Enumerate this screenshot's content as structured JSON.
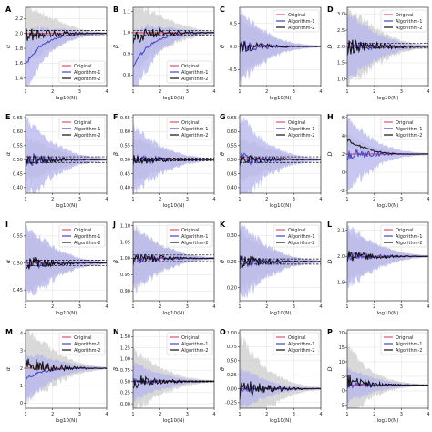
{
  "colors": {
    "original": "#e0506a",
    "algorithm1": "#4444cc",
    "algorithm2": "#111111",
    "band1": "#b4b4ec",
    "band2": "#cccccc",
    "reference": "#000000"
  },
  "legend_entries": [
    "Original",
    "Algorithm-1",
    "Algorithm-2"
  ],
  "xlabel": "log10(N)",
  "chart_data": [
    {
      "type": "line",
      "panel": "A",
      "ylabel": "α",
      "xlim": [
        1,
        4
      ],
      "ylim": [
        1.3,
        2.35
      ],
      "yticks": [
        1.4,
        1.6,
        1.8,
        2.0,
        2.2
      ],
      "ytick_labels": [
        "1.4",
        "1.6",
        "1.8",
        "2.0",
        "2.2"
      ],
      "xticks": [
        1,
        2,
        3,
        4
      ],
      "xtick_labels": [
        "1",
        "2",
        "3",
        "4"
      ],
      "truth": 2.0,
      "ref": [
        2.04,
        1.97
      ],
      "legend": "bottom-right",
      "n1": "1.6,1.82,1.92,1.97,1.99,2.0,2.0",
      "n2": "1.98,1.99,2.0,2.0,2.0,2.0,2.0",
      "w1": "0.4,0.25,0.15,0.08,0.04,0.02,0.01",
      "w2": "0.4,0.3,0.2,0.12,0.06,0.03,0.01",
      "s1": "start",
      "s2": "noisy"
    },
    {
      "type": "line",
      "panel": "B",
      "ylabel": "β",
      "xlim": [
        1,
        4
      ],
      "ylim": [
        0.75,
        1.12
      ],
      "yticks": [
        0.8,
        0.9,
        1.0,
        1.1
      ],
      "ytick_labels": [
        "0.8",
        "0.9",
        "1.0",
        "1.1"
      ],
      "xticks": [
        1,
        2,
        3,
        4
      ],
      "xtick_labels": [
        "1",
        "2",
        "3",
        "4"
      ],
      "truth": 1.0,
      "ref": [
        1.01,
        0.99
      ],
      "legend": "bottom-right",
      "n1": "0.85,0.93,0.97,0.99,1.0,1.0,1.0",
      "n2": "0.98,0.99,1.0,1.0,1.0,1.0,1.0",
      "w1": "0.15,0.1,0.06,0.03,0.015,0.008,0.004",
      "w2": "0.15,0.12,0.08,0.05,0.03,0.015,0.006",
      "s1": "start",
      "s2": "noisy"
    },
    {
      "type": "line",
      "panel": "C",
      "ylabel": "θ",
      "xlim": [
        1,
        4
      ],
      "ylim": [
        -0.85,
        0.85
      ],
      "yticks": [
        -0.5,
        0.0,
        0.5
      ],
      "ytick_labels": [
        "-0.5",
        "0.0",
        "0.5"
      ],
      "xticks": [
        1,
        2,
        3,
        4
      ],
      "xtick_labels": [
        "1",
        "2",
        "3",
        "4"
      ],
      "truth": 0.0,
      "ref": [],
      "legend": "top-right",
      "n1": "0,0,0,0,0,0,0",
      "n2": "0,0,0,0,0,0,0",
      "w1": "0.8,0.5,0.3,0.15,0.08,0.04,0.02",
      "w2": "0.6,0.4,0.25,0.12,0.06,0.03,0.015",
      "s1": "noisy",
      "s2": "noisy"
    },
    {
      "type": "line",
      "panel": "D",
      "ylabel": "D",
      "xlim": [
        1,
        4
      ],
      "ylim": [
        0.8,
        3.2
      ],
      "yticks": [
        1.0,
        1.5,
        2.0,
        2.5,
        3.0
      ],
      "ytick_labels": [
        "1.0",
        "1.5",
        "2.0",
        "2.5",
        "3.0"
      ],
      "xticks": [
        1,
        2,
        3,
        4
      ],
      "xtick_labels": [
        "1",
        "2",
        "3",
        "4"
      ],
      "truth": 2.0,
      "ref": [
        2.1,
        1.95
      ],
      "legend": "top-right",
      "n1": "2,2,2,2,2,2,2",
      "n2": "2,2,2,2,2,2,2",
      "w1": "1.0,0.7,0.45,0.25,0.12,0.06,0.03",
      "w2": "1.2,0.9,0.6,0.35,0.18,0.09,0.04",
      "s1": "noisy",
      "s2": "noisy"
    },
    {
      "type": "line",
      "panel": "E",
      "ylabel": "α",
      "xlim": [
        1,
        4
      ],
      "ylim": [
        0.38,
        0.66
      ],
      "yticks": [
        0.4,
        0.45,
        0.5,
        0.55,
        0.6,
        0.65
      ],
      "ytick_labels": [
        "0.40",
        "0.45",
        "0.50",
        "0.55",
        "0.60",
        "0.65"
      ],
      "xticks": [
        1,
        2,
        3,
        4
      ],
      "xtick_labels": [
        "1",
        "2",
        "3",
        "4"
      ],
      "truth": 0.5,
      "ref": [
        0.51,
        0.49
      ],
      "legend": "top-right",
      "n1": "0.5,0.5,0.5,0.5,0.5,0.5,0.5",
      "n2": "0.5,0.5,0.5,0.5,0.5,0.5,0.5",
      "w1": "0.15,0.1,0.06,0.035,0.018,0.009,0.004",
      "w2": "0.08,0.06,0.04,0.025,0.012,0.006,0.003",
      "s1": "noisy",
      "s2": "noisy"
    },
    {
      "type": "line",
      "panel": "F",
      "ylabel": "β",
      "xlim": [
        1,
        4
      ],
      "ylim": [
        0.38,
        0.66
      ],
      "yticks": [
        0.4,
        0.45,
        0.5,
        0.55,
        0.6,
        0.65
      ],
      "ytick_labels": [
        "0.40",
        "0.45",
        "0.50",
        "0.55",
        "0.60",
        "0.65"
      ],
      "xticks": [
        1,
        2,
        3,
        4
      ],
      "xtick_labels": [
        "1",
        "2",
        "3",
        "4"
      ],
      "truth": 0.5,
      "ref": [
        0.505,
        0.495
      ],
      "legend": "top-right",
      "n1": "0.5,0.5,0.5,0.5,0.5,0.5,0.5",
      "n2": "0.5,0.5,0.5,0.5,0.5,0.5,0.5",
      "w1": "0.12,0.08,0.05,0.03,0.015,0.008,0.004",
      "w2": "0.08,0.06,0.04,0.025,0.012,0.006,0.003",
      "s1": "noisy",
      "s2": "noisy"
    },
    {
      "type": "line",
      "panel": "G",
      "ylabel": "θ",
      "xlim": [
        1,
        4
      ],
      "ylim": [
        0.38,
        0.66
      ],
      "yticks": [
        0.4,
        0.45,
        0.5,
        0.55,
        0.6,
        0.65
      ],
      "ytick_labels": [
        "0.40",
        "0.45",
        "0.50",
        "0.55",
        "0.60",
        "0.65"
      ],
      "xticks": [
        1,
        2,
        3,
        4
      ],
      "xtick_labels": [
        "1",
        "2",
        "3",
        "4"
      ],
      "truth": 0.5,
      "ref": [
        0.51,
        0.49
      ],
      "legend": "top-right",
      "n1": "0.5,0.5,0.5,0.5,0.5,0.5,0.5",
      "n2": "0.5,0.5,0.5,0.5,0.5,0.5,0.5",
      "w1": "0.15,0.1,0.06,0.035,0.018,0.009,0.004",
      "w2": "0.08,0.06,0.04,0.025,0.012,0.006,0.003",
      "s1": "noisy",
      "s2": "noisy"
    },
    {
      "type": "line",
      "panel": "H",
      "ylabel": "D",
      "xlim": [
        1,
        4
      ],
      "ylim": [
        -2.3,
        6.3
      ],
      "yticks": [
        -2,
        0,
        2,
        4,
        6
      ],
      "ytick_labels": [
        "-2",
        "0",
        "2",
        "4",
        "6"
      ],
      "xticks": [
        1,
        2,
        3,
        4
      ],
      "xtick_labels": [
        "1",
        "2",
        "3",
        "4"
      ],
      "truth": 2.0,
      "ref": [],
      "legend": "top-right",
      "n1": "2,2,2,2,2,2,2",
      "n2": "3.5,2.8,2.3,2.1,2.0,2.0,2.0",
      "w1": "4.0,2.5,1.5,0.8,0.4,0.2,0.1",
      "w2": "0.8,0.6,0.4,0.25,0.12,0.06,0.03",
      "s1": "noisy",
      "s2": "noisy"
    },
    {
      "type": "line",
      "panel": "I",
      "ylabel": "α",
      "xlim": [
        1,
        4
      ],
      "ylim": [
        0.43,
        0.575
      ],
      "yticks": [
        0.45,
        0.5,
        0.55
      ],
      "ytick_labels": [
        "0.45",
        "0.50",
        "0.55"
      ],
      "xticks": [
        1,
        2,
        3,
        4
      ],
      "xtick_labels": [
        "1",
        "2",
        "3",
        "4"
      ],
      "truth": 0.5,
      "ref": [
        0.505,
        0.495
      ],
      "legend": "top-right",
      "n1": "0.5,0.5,0.5,0.5,0.5,0.5,0.5",
      "n2": "0.5,0.5,0.5,0.5,0.5,0.5,0.5",
      "w1": "0.07,0.05,0.03,0.018,0.009,0.005,0.002",
      "w2": "0.06,0.04,0.025,0.015,0.008,0.004,0.002",
      "s1": "noisy",
      "s2": "noisy"
    },
    {
      "type": "line",
      "panel": "J",
      "ylabel": "β",
      "xlim": [
        1,
        4
      ],
      "ylim": [
        0.87,
        1.11
      ],
      "yticks": [
        0.9,
        0.95,
        1.0,
        1.05,
        1.1
      ],
      "ytick_labels": [
        "0.90",
        "0.95",
        "1.00",
        "1.05",
        "1.10"
      ],
      "xticks": [
        1,
        2,
        3,
        4
      ],
      "xtick_labels": [
        "1",
        "2",
        "3",
        "4"
      ],
      "truth": 1.0,
      "ref": [
        1.01,
        0.99
      ],
      "legend": "top-right",
      "n1": "1,1,1,1,1,1,1",
      "n2": "1,1,1,1,1,1,1",
      "w1": "0.1,0.07,0.04,0.025,0.012,0.006,0.003",
      "w2": "0.1,0.07,0.04,0.025,0.012,0.006,0.003",
      "s1": "noisy",
      "s2": "noisy"
    },
    {
      "type": "line",
      "panel": "K",
      "ylabel": "θ",
      "xlim": [
        1,
        4
      ],
      "ylim": [
        0.175,
        0.325
      ],
      "yticks": [
        0.2,
        0.25,
        0.3
      ],
      "ytick_labels": [
        "0.20",
        "0.25",
        "0.30"
      ],
      "xticks": [
        1,
        2,
        3,
        4
      ],
      "xtick_labels": [
        "1",
        "2",
        "3",
        "4"
      ],
      "truth": 0.25,
      "ref": [
        0.255,
        0.245
      ],
      "legend": "top-right",
      "n1": "0.25,0.25,0.25,0.25,0.25,0.25,0.25",
      "n2": "0.25,0.25,0.25,0.25,0.25,0.25,0.25",
      "w1": "0.07,0.05,0.03,0.018,0.009,0.005,0.002",
      "w2": "0.06,0.04,0.025,0.015,0.008,0.004,0.002",
      "s1": "noisy",
      "s2": "noisy"
    },
    {
      "type": "line",
      "panel": "L",
      "ylabel": "D",
      "xlim": [
        1,
        4
      ],
      "ylim": [
        1.83,
        2.13
      ],
      "yticks": [
        1.9,
        2.0,
        2.1
      ],
      "ytick_labels": [
        "1.9",
        "2.0",
        "2.1"
      ],
      "xticks": [
        1,
        2,
        3,
        4
      ],
      "xtick_labels": [
        "1",
        "2",
        "3",
        "4"
      ],
      "truth": 2.0,
      "ref": [],
      "legend": "top-right",
      "n1": "2,2,2,2,2,2,2",
      "n2": "2,2,2,2,2,2,2",
      "w1": "0.12,0.08,0.05,0.03,0.015,0.008,0.004",
      "w2": "0.1,0.07,0.045,0.028,0.014,0.007,0.003",
      "s1": "noisy",
      "s2": "noisy"
    },
    {
      "type": "line",
      "panel": "M",
      "ylabel": "α",
      "xlim": [
        1,
        4
      ],
      "ylim": [
        -0.3,
        4.2
      ],
      "yticks": [
        0,
        1,
        2,
        3,
        4
      ],
      "ytick_labels": [
        "0",
        "1",
        "2",
        "3",
        "4"
      ],
      "xticks": [
        1,
        2,
        3,
        4
      ],
      "xtick_labels": [
        "1",
        "2",
        "3",
        "4"
      ],
      "truth": 2.0,
      "ref": [],
      "legend": "top-right",
      "n1": "1.4,1.75,1.9,1.97,2.0,2.0,2.0",
      "n2": "2.3,2.15,2.05,2.0,2.0,2.0,2.0",
      "w1": "1.4,1.0,0.6,0.35,0.18,0.09,0.04",
      "w2": "2.0,1.5,1.0,0.6,0.3,0.15,0.07",
      "s1": "start",
      "s2": "noisy"
    },
    {
      "type": "line",
      "panel": "N",
      "ylabel": "β",
      "xlim": [
        1,
        4
      ],
      "ylim": [
        -0.1,
        1.65
      ],
      "yticks": [
        0.0,
        0.25,
        0.5,
        0.75,
        1.0,
        1.25,
        1.5
      ],
      "ytick_labels": [
        "0.00",
        "0.25",
        "0.50",
        "0.75",
        "1.00",
        "1.25",
        "1.50"
      ],
      "xticks": [
        1,
        2,
        3,
        4
      ],
      "xtick_labels": [
        "1",
        "2",
        "3",
        "4"
      ],
      "truth": 0.5,
      "ref": [
        0.51,
        0.49
      ],
      "legend": "top-right",
      "n1": "0.5,0.5,0.5,0.5,0.5,0.5,0.5",
      "n2": "0.5,0.5,0.5,0.5,0.5,0.5,0.5",
      "w1": "0.4,0.28,0.18,0.1,0.05,0.025,0.012",
      "w2": "0.7,0.5,0.3,0.18,0.09,0.045,0.02",
      "s1": "noisy",
      "s2": "noisy"
    },
    {
      "type": "line",
      "panel": "O",
      "ylabel": "θ",
      "xlim": [
        1,
        4
      ],
      "ylim": [
        -0.35,
        1.05
      ],
      "yticks": [
        -0.25,
        0.0,
        0.25,
        0.5,
        0.75,
        1.0
      ],
      "ytick_labels": [
        "-0.25",
        "0.00",
        "0.25",
        "0.50",
        "0.75",
        "1.00"
      ],
      "xticks": [
        1,
        2,
        3,
        4
      ],
      "xtick_labels": [
        "1",
        "2",
        "3",
        "4"
      ],
      "truth": 0.0,
      "ref": [],
      "legend": "top-right",
      "n1": "0,0,0,0,0,0,0",
      "n2": "0,0,0,0,0,0,0",
      "w1": "0.35,0.25,0.15,0.08,0.04,0.02,0.01",
      "w2": "0.9,0.6,0.35,0.2,0.1,0.05,0.025",
      "s1": "noisy",
      "s2": "noisy"
    },
    {
      "type": "line",
      "panel": "P",
      "ylabel": "D",
      "xlim": [
        1,
        4
      ],
      "ylim": [
        -6,
        21
      ],
      "yticks": [
        -5,
        0,
        5,
        10,
        15,
        20
      ],
      "ytick_labels": [
        "-5",
        "0",
        "5",
        "10",
        "15",
        "20"
      ],
      "xticks": [
        1,
        2,
        3,
        4
      ],
      "xtick_labels": [
        "1",
        "2",
        "3",
        "4"
      ],
      "truth": 2.0,
      "ref": [],
      "legend": "top-right",
      "n1": "2,2,2,2,2,2,2",
      "n2": "3.5,2.6,2.2,2.05,2.0,2.0,2.0",
      "w1": "6,4,2.5,1.3,0.65,0.33,0.15",
      "w2": "12,7,4,2,1,0.5,0.25",
      "s1": "noisy",
      "s2": "noisy"
    }
  ]
}
